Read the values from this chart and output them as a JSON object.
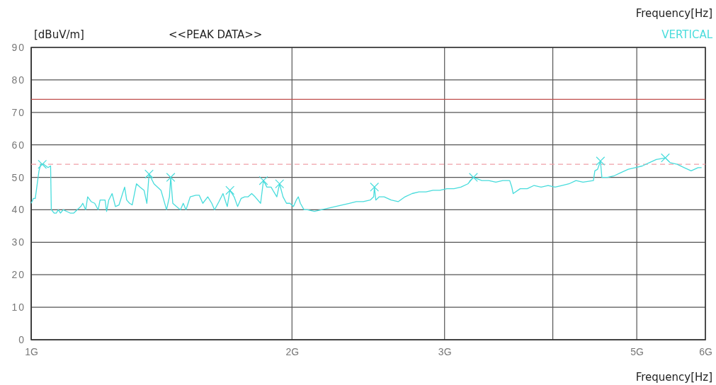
{
  "chart_data": {
    "type": "line",
    "title": "<<PEAK DATA>>",
    "ylabel": "[dBuV/m]",
    "xlabel": "Frequency[Hz]",
    "annotations": [
      "Frequency[Hz]"
    ],
    "log": "x",
    "grid": true,
    "legend": "top right",
    "xlim": [
      1,
      6
    ],
    "xticks": [
      {
        "value": 1,
        "label": "1G"
      },
      {
        "value": 2,
        "label": "2G"
      },
      {
        "value": 3,
        "label": "3G"
      },
      {
        "value": 4,
        "label": null
      },
      {
        "value": 5,
        "label": "5G"
      },
      {
        "value": 6,
        "label": "6G"
      }
    ],
    "ylim": [
      0,
      90
    ],
    "yticks": [
      0,
      10,
      20,
      30,
      40,
      50,
      60,
      70,
      80,
      90
    ],
    "ref_lines": [
      {
        "axis": "y",
        "value": 74,
        "color": "#c0504d",
        "line_style": "solid"
      },
      {
        "axis": "y",
        "value": 54,
        "color": "#f0a0a8",
        "line_style": "dashed"
      }
    ],
    "series": [
      {
        "name": "VERTICAL",
        "color": "#48dcdc",
        "line_style": "solid",
        "x": [
          1.0,
          1.006,
          1.011,
          1.021,
          1.026,
          1.034,
          1.046,
          1.053,
          1.055,
          1.063,
          1.069,
          1.075,
          1.081,
          1.089,
          1.099,
          1.109,
          1.12,
          1.13,
          1.141,
          1.147,
          1.156,
          1.162,
          1.173,
          1.184,
          1.195,
          1.201,
          1.217,
          1.222,
          1.229,
          1.24,
          1.251,
          1.263,
          1.275,
          1.282,
          1.289,
          1.299,
          1.308,
          1.323,
          1.335,
          1.35,
          1.36,
          1.368,
          1.386,
          1.412,
          1.433,
          1.444,
          1.449,
          1.457,
          1.471,
          1.487,
          1.498,
          1.509,
          1.526,
          1.549,
          1.563,
          1.578,
          1.599,
          1.616,
          1.628,
          1.647,
          1.665,
          1.684,
          1.696,
          1.715,
          1.731,
          1.747,
          1.764,
          1.78,
          1.797,
          1.813,
          1.84,
          1.854,
          1.871,
          1.892,
          1.906,
          1.921,
          1.935,
          1.953,
          1.971,
          1.989,
          2.008,
          2.023,
          2.034,
          2.045,
          2.065,
          2.084,
          2.123,
          2.163,
          2.203,
          2.244,
          2.286,
          2.329,
          2.373,
          2.417,
          2.462,
          2.485,
          2.49,
          2.499,
          2.522,
          2.555,
          2.603,
          2.652,
          2.701,
          2.752,
          2.803,
          2.856,
          2.909,
          2.963,
          3.019,
          3.076,
          3.133,
          3.192,
          3.239,
          3.313,
          3.374,
          3.438,
          3.502,
          3.567,
          3.587,
          3.6,
          3.668,
          3.737,
          3.806,
          3.878,
          3.95,
          4.024,
          4.099,
          4.176,
          4.254,
          4.334,
          4.456,
          4.473,
          4.506,
          4.54,
          4.557,
          4.625,
          4.711,
          4.799,
          4.889,
          4.981,
          5.074,
          5.169,
          5.266,
          5.394,
          5.464,
          5.567,
          5.671,
          5.777,
          5.885,
          5.94
        ],
        "values": [
          42,
          43.5,
          43.5,
          52,
          54,
          54,
          53,
          53.5,
          40,
          39,
          39,
          40,
          39,
          40,
          39.5,
          39,
          39,
          40,
          41,
          42,
          40,
          44,
          42.5,
          42,
          40,
          43,
          43,
          39.5,
          43,
          45,
          41,
          41.5,
          45,
          47,
          43,
          42,
          41.5,
          48,
          47,
          46,
          42,
          51,
          48,
          46,
          40,
          44,
          50,
          42,
          41,
          40,
          42,
          40,
          44,
          44.5,
          44.5,
          42,
          44,
          42,
          40,
          42.5,
          45,
          41,
          46,
          44,
          41,
          43.5,
          44,
          44,
          45,
          44,
          42,
          49,
          47,
          47,
          45.5,
          44,
          48,
          44,
          42,
          42,
          41,
          43,
          44,
          42,
          40,
          40,
          39.5,
          40,
          40.5,
          41,
          41.5,
          42,
          42.5,
          42.5,
          43,
          44,
          47,
          43,
          44,
          44,
          43,
          42.5,
          44,
          45,
          45.5,
          45.5,
          46,
          46,
          46.5,
          46.5,
          47,
          48,
          50,
          49,
          49,
          48.5,
          49,
          49,
          47,
          45,
          46.5,
          46.5,
          47.5,
          47,
          47.5,
          47,
          47.5,
          48,
          49,
          48.5,
          49,
          52,
          52.5,
          55,
          50,
          50,
          50.5,
          51.5,
          52.5,
          53,
          53.5,
          54.5,
          55.5,
          56,
          54.5,
          54,
          53,
          52,
          53,
          53
        ]
      },
      {
        "type": "scatter",
        "marker": "cross",
        "color": "#48dcdc",
        "x": [
          1.03,
          1.368,
          1.449,
          1.696,
          1.854,
          1.935,
          2.49,
          3.239,
          4.54,
          5.394
        ],
        "values": [
          54,
          51,
          50,
          46,
          49,
          48,
          47,
          50,
          55,
          56
        ]
      }
    ]
  }
}
